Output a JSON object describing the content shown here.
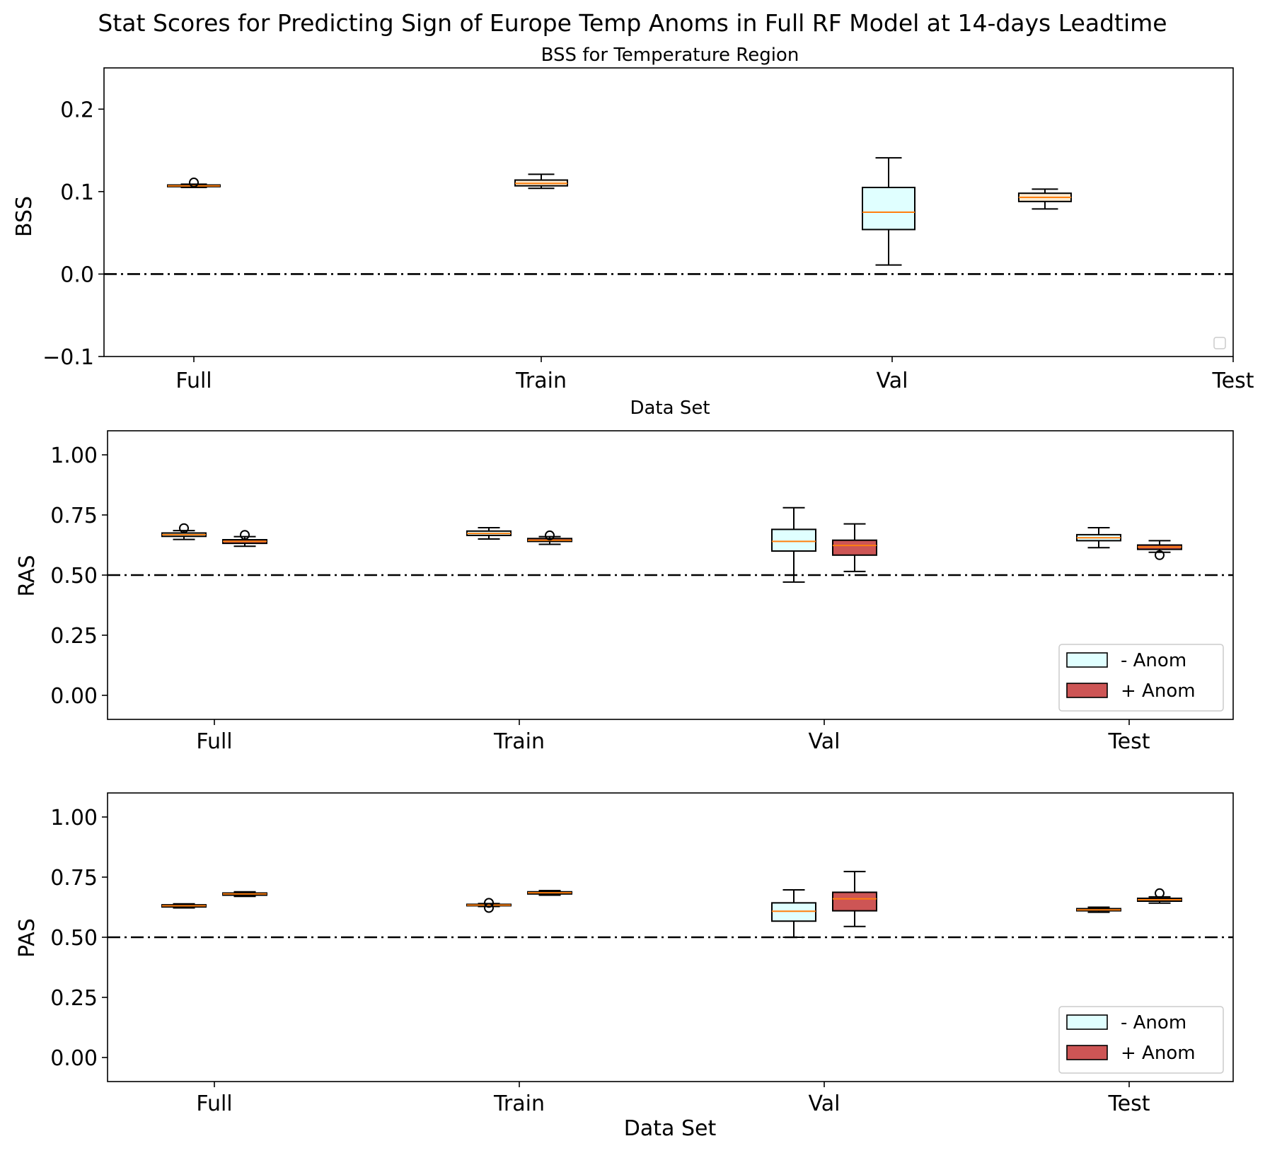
{
  "figure_title": "Stat Scores for Predicting Sign of Europe Temp Anoms in Full RF Model at 14-days Leadtime",
  "colors": {
    "neg_anom_fill": "#e0ffff",
    "pos_anom_fill": "#cd5555",
    "bss_fill": "#fdebd0",
    "median": "#ff7f0e",
    "axes": "#000000",
    "reference_line": "#000000"
  },
  "chart_data": [
    {
      "type": "boxplot",
      "title": "BSS for Temperature Region",
      "xlabel": "Data Set",
      "ylabel": "BSS",
      "categories": [
        "Full",
        "Train",
        "Val",
        "Test"
      ],
      "ylim": [
        -0.1,
        0.25
      ],
      "yticks": [
        "−0.1",
        "0.0",
        "0.1",
        "0.2"
      ],
      "ytick_values": [
        -0.1,
        0.0,
        0.1,
        0.2
      ],
      "reference_line": 0.0,
      "legend": {
        "placement": "bottom-right",
        "entries": []
      },
      "boxes": [
        {
          "label": "Full",
          "x": 0.0,
          "fill": "bss",
          "whislo": 0.105,
          "q1": 0.106,
          "med": 0.107,
          "q3": 0.108,
          "whishi": 0.109,
          "fliers": [
            0.111
          ]
        },
        {
          "label": "Train",
          "x": 1.0,
          "fill": "bss",
          "whislo": 0.104,
          "q1": 0.107,
          "med": 0.11,
          "q3": 0.114,
          "whishi": 0.121,
          "fliers": []
        },
        {
          "label": "Val",
          "x": 2.0,
          "fill": "neg",
          "whislo": 0.011,
          "q1": 0.054,
          "med": 0.075,
          "q3": 0.105,
          "whishi": 0.141,
          "fliers": []
        },
        {
          "label": "Test",
          "x": 2.45,
          "fill": "bss",
          "whislo": 0.079,
          "q1": 0.088,
          "med": 0.093,
          "q3": 0.098,
          "whishi": 0.103,
          "fliers": []
        }
      ]
    },
    {
      "type": "boxplot",
      "title": "",
      "xlabel": "",
      "ylabel": "RAS",
      "categories": [
        "Full",
        "Train",
        "Val",
        "Test"
      ],
      "ylim": [
        -0.1,
        1.1
      ],
      "yticks": [
        "0.00",
        "0.25",
        "0.50",
        "0.75",
        "1.00"
      ],
      "ytick_values": [
        0.0,
        0.25,
        0.5,
        0.75,
        1.0
      ],
      "reference_line": 0.5,
      "legend": {
        "placement": "bottom-right",
        "entries": [
          "- Anom",
          "+ Anom"
        ]
      },
      "series": [
        {
          "name": "- Anom",
          "fill": "neg",
          "boxes": [
            {
              "label": "Full",
              "whislo": 0.648,
              "q1": 0.661,
              "med": 0.668,
              "q3": 0.675,
              "whishi": 0.685,
              "fliers": [
                0.695
              ]
            },
            {
              "label": "Train",
              "whislo": 0.65,
              "q1": 0.665,
              "med": 0.673,
              "q3": 0.683,
              "whishi": 0.697,
              "fliers": []
            },
            {
              "label": "Val",
              "whislo": 0.471,
              "q1": 0.6,
              "med": 0.64,
              "q3": 0.69,
              "whishi": 0.78,
              "fliers": []
            },
            {
              "label": "Test",
              "whislo": 0.614,
              "q1": 0.643,
              "med": 0.655,
              "q3": 0.668,
              "whishi": 0.697,
              "fliers": []
            }
          ]
        },
        {
          "name": "+ Anom",
          "fill": "pos",
          "boxes": [
            {
              "label": "Full",
              "whislo": 0.62,
              "q1": 0.632,
              "med": 0.64,
              "q3": 0.647,
              "whishi": 0.66,
              "fliers": [
                0.667
              ]
            },
            {
              "label": "Train",
              "whislo": 0.628,
              "q1": 0.64,
              "med": 0.645,
              "q3": 0.652,
              "whishi": 0.66,
              "fliers": [
                0.665
              ]
            },
            {
              "label": "Val",
              "whislo": 0.515,
              "q1": 0.583,
              "med": 0.623,
              "q3": 0.645,
              "whishi": 0.713,
              "fliers": []
            },
            {
              "label": "Test",
              "whislo": 0.595,
              "q1": 0.607,
              "med": 0.617,
              "q3": 0.625,
              "whishi": 0.643,
              "fliers": [
                0.583
              ]
            }
          ]
        }
      ]
    },
    {
      "type": "boxplot",
      "title": "",
      "xlabel": "Data Set",
      "ylabel": "PAS",
      "categories": [
        "Full",
        "Train",
        "Val",
        "Test"
      ],
      "ylim": [
        -0.1,
        1.1
      ],
      "yticks": [
        "0.00",
        "0.25",
        "0.50",
        "0.75",
        "1.00"
      ],
      "ytick_values": [
        0.0,
        0.25,
        0.5,
        0.75,
        1.0
      ],
      "reference_line": 0.5,
      "legend": {
        "placement": "bottom-right",
        "entries": [
          "- Anom",
          "+ Anom"
        ]
      },
      "series": [
        {
          "name": "- Anom",
          "fill": "neg",
          "boxes": [
            {
              "label": "Full",
              "whislo": 0.622,
              "q1": 0.626,
              "med": 0.631,
              "q3": 0.635,
              "whishi": 0.639,
              "fliers": []
            },
            {
              "label": "Train",
              "whislo": 0.628,
              "q1": 0.631,
              "med": 0.634,
              "q3": 0.637,
              "whishi": 0.64,
              "fliers": [
                0.622,
                0.643
              ]
            },
            {
              "label": "Val",
              "whislo": 0.5,
              "q1": 0.567,
              "med": 0.608,
              "q3": 0.643,
              "whishi": 0.697,
              "fliers": []
            },
            {
              "label": "Test",
              "whislo": 0.604,
              "q1": 0.61,
              "med": 0.614,
              "q3": 0.619,
              "whishi": 0.625,
              "fliers": []
            }
          ]
        },
        {
          "name": "+ Anom",
          "fill": "pos",
          "boxes": [
            {
              "label": "Full",
              "whislo": 0.67,
              "q1": 0.675,
              "med": 0.68,
              "q3": 0.684,
              "whishi": 0.689,
              "fliers": []
            },
            {
              "label": "Train",
              "whislo": 0.675,
              "q1": 0.68,
              "med": 0.685,
              "q3": 0.689,
              "whishi": 0.694,
              "fliers": []
            },
            {
              "label": "Val",
              "whislo": 0.545,
              "q1": 0.61,
              "med": 0.66,
              "q3": 0.687,
              "whishi": 0.773,
              "fliers": []
            },
            {
              "label": "Test",
              "whislo": 0.642,
              "q1": 0.65,
              "med": 0.656,
              "q3": 0.662,
              "whishi": 0.668,
              "fliers": [
                0.683
              ]
            }
          ]
        }
      ]
    }
  ]
}
